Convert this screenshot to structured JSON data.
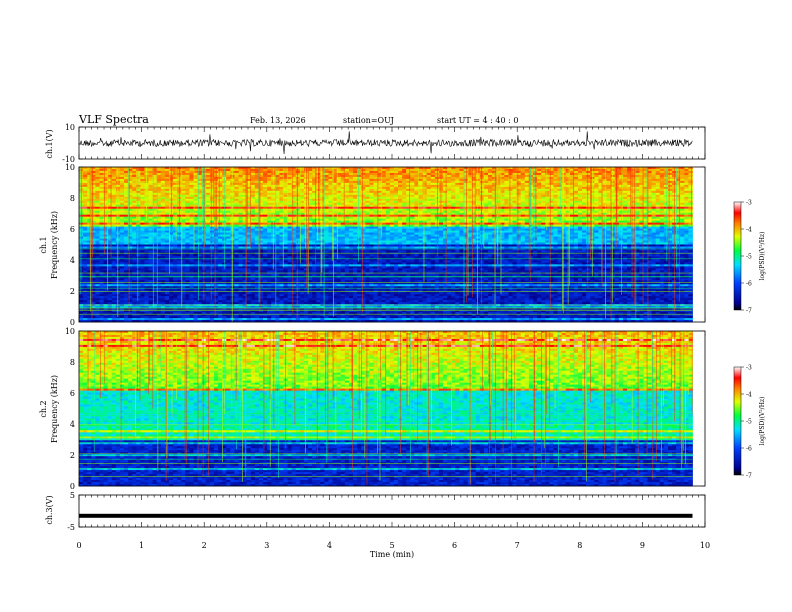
{
  "header": {
    "title": "VLF Spectra",
    "date": "Feb. 13, 2026",
    "station": "station=OUJ",
    "start_ut": "start UT =  4 : 40 : 0"
  },
  "chart_data": [
    {
      "type": "line",
      "name": "ch1-waveform",
      "ylabel": "ch.1(V)",
      "ylim": [
        -10,
        10
      ],
      "yticks": [
        "10",
        "-10"
      ],
      "xlim": [
        0,
        10
      ],
      "baseline": 0
    },
    {
      "type": "heatmap",
      "name": "ch1-spectrogram",
      "ylabel_line1": "ch.1",
      "ylabel_line2": "Frequency (kHz)",
      "ylim": [
        0,
        10
      ],
      "yticks": [
        "0",
        "2",
        "4",
        "6",
        "8",
        "10"
      ],
      "xlim": [
        0,
        10
      ],
      "data_end_min": 9.8,
      "colorbar": {
        "label": "log(PSD)(V²/Hz)",
        "range": [
          -7,
          -3
        ],
        "ticks": [
          "-3",
          "-4",
          "-5",
          "-6",
          "-7"
        ]
      }
    },
    {
      "type": "heatmap",
      "name": "ch2-spectrogram",
      "ylabel_line1": "ch.2",
      "ylabel_line2": "Frequency (kHz)",
      "ylim": [
        0,
        10
      ],
      "yticks": [
        "0",
        "2",
        "4",
        "6",
        "8",
        "10"
      ],
      "xlim": [
        0,
        10
      ],
      "data_end_min": 9.8,
      "colorbar": {
        "label": "log(PSD)(V²/Hz)",
        "range": [
          -7,
          -3
        ],
        "ticks": [
          "-3",
          "-4",
          "-5",
          "-6",
          "-7"
        ]
      }
    },
    {
      "type": "line",
      "name": "ch3-waveform",
      "ylabel": "ch.3(V)",
      "ylim": [
        -5,
        5
      ],
      "yticks": [
        "5",
        "-5"
      ],
      "xlim": [
        0,
        10
      ],
      "baseline": -1.5
    }
  ],
  "xaxis": {
    "label": "Time (min)",
    "ticks": [
      "0",
      "1",
      "2",
      "3",
      "4",
      "5",
      "6",
      "7",
      "8",
      "9",
      "10"
    ]
  }
}
